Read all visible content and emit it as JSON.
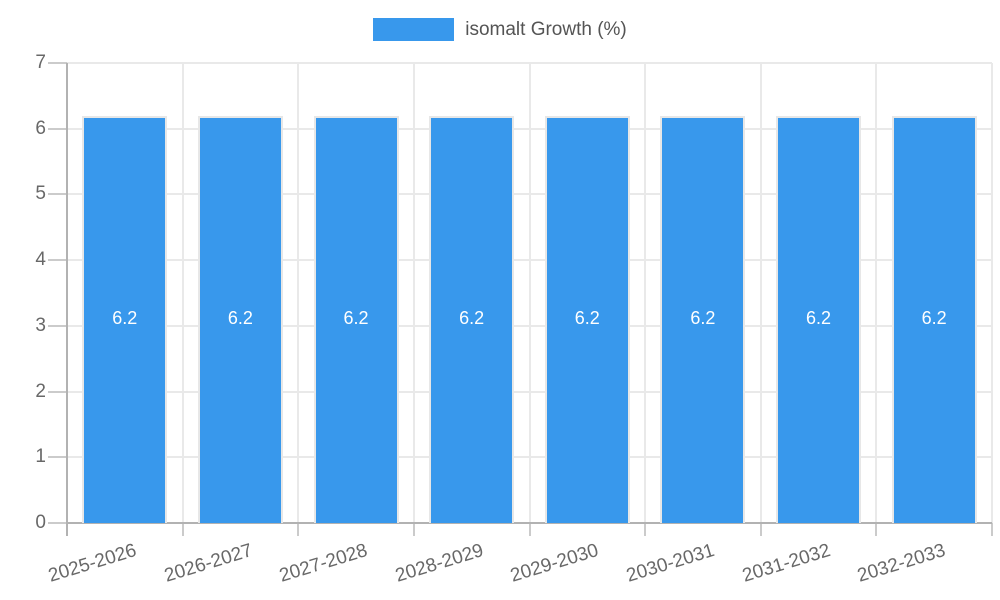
{
  "legend": {
    "label": "isomalt Growth (%)"
  },
  "chart_data": {
    "type": "bar",
    "title": "",
    "xlabel": "",
    "ylabel": "",
    "categories": [
      "2025-2026",
      "2026-2027",
      "2027-2028",
      "2028-2029",
      "2029-2030",
      "2030-2031",
      "2031-2032",
      "2032-2033"
    ],
    "series": [
      {
        "name": "isomalt Growth (%)",
        "values": [
          6.2,
          6.2,
          6.2,
          6.2,
          6.2,
          6.2,
          6.2,
          6.2
        ]
      }
    ],
    "data_labels": [
      "6.2",
      "6.2",
      "6.2",
      "6.2",
      "6.2",
      "6.2",
      "6.2",
      "6.2"
    ],
    "ylim": [
      0,
      7
    ],
    "yticks": [
      0,
      1,
      2,
      3,
      4,
      5,
      6,
      7
    ],
    "grid": true,
    "legend_position": "top",
    "colors": {
      "bar": "#3898ec",
      "bar_border": "#e7e7e7",
      "grid": "#e9e9e9",
      "axis": "#b2b2b2",
      "tick": "#cbcbcb",
      "axis_text": "#686868",
      "data_label_text": "#ffffff",
      "legend_text": "#545454"
    }
  }
}
